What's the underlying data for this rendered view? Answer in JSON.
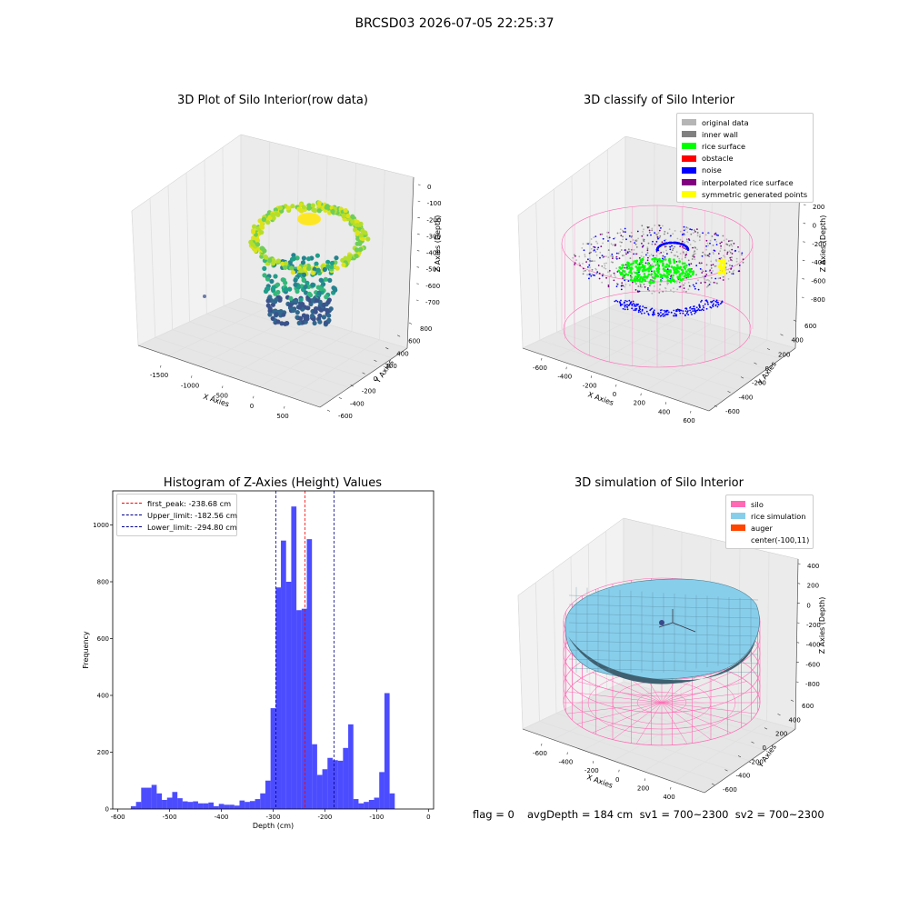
{
  "figure": {
    "suptitle": "BRCSD03 2026-07-05 22:25:37",
    "footer": {
      "flag": "flag = 0",
      "stats": "avgDepth = 184 cm  sv1 = 700~2300  sv2 = 700~2300"
    }
  },
  "colors": {
    "original": "#b5b5b5",
    "inner_wall": "#808080",
    "rice_surface": "#00ff00",
    "obstacle": "#ff0000",
    "noise": "#0000ff",
    "interpolated": "#800080",
    "symmetric": "#ffff00",
    "silo": "#ff69b4",
    "rice_sim": "#87ceeb",
    "auger": "#ff4500",
    "hist_bar": "#0000ff",
    "first_peak": "#ff0000",
    "limits": "#00008b"
  },
  "chart_data": [
    {
      "type": "scatter",
      "subtype": "3d",
      "title": "3D Plot of Silo Interior(row data)",
      "xlabel": "X Axies",
      "ylabel": "Y Axies",
      "zlabel": "Z Axies (Depth)",
      "x_ticks": [
        "-1500",
        "-1000",
        "-500",
        "0",
        "500"
      ],
      "y_ticks": [
        "-600",
        "-400",
        "-200",
        "0",
        "200",
        "400",
        "600",
        "800"
      ],
      "z_ticks": [
        "0",
        "-100",
        "-200",
        "-300",
        "-400",
        "-500",
        "-600",
        "-700"
      ],
      "colormap": "viridis",
      "grid": true
    },
    {
      "type": "scatter",
      "subtype": "3d",
      "title": "3D classify of Silo Interior",
      "xlabel": "X Axies",
      "ylabel": "Y Axies",
      "zlabel": "Z Axies (Depth)",
      "x_ticks": [
        "-600",
        "-400",
        "-200",
        "0",
        "200",
        "400",
        "600"
      ],
      "y_ticks": [
        "-600",
        "-400",
        "-200",
        "0",
        "200",
        "400",
        "600"
      ],
      "z_ticks": [
        "200",
        "0",
        "-200",
        "-400",
        "-600",
        "-800"
      ],
      "z_ticks_note": "top z tick partially hidden by legend",
      "legend": [
        {
          "label": "original data",
          "color": "#b5b5b5"
        },
        {
          "label": "inner wall",
          "color": "#808080"
        },
        {
          "label": "rice surface",
          "color": "#00ff00"
        },
        {
          "label": "obstacle",
          "color": "#ff0000"
        },
        {
          "label": "noise",
          "color": "#0000ff"
        },
        {
          "label": "interpolated rice surface",
          "color": "#800080"
        },
        {
          "label": "symmetric generated points",
          "color": "#ffff00"
        }
      ],
      "legend_position": "top-right",
      "grid": true
    },
    {
      "type": "bar",
      "subtype": "histogram",
      "title": "Histogram of Z-Axies (Height) Values",
      "xlabel": "Depth (cm)",
      "ylabel": "Frequency",
      "xlim": [
        -610,
        10
      ],
      "ylim": [
        0,
        1120
      ],
      "x_ticks": [
        -600,
        -500,
        -400,
        -300,
        -200,
        -100,
        0
      ],
      "y_ticks": [
        0,
        200,
        400,
        600,
        800,
        1000
      ],
      "bin_width": 10,
      "bins": [
        {
          "x0": -575,
          "count": 10
        },
        {
          "x0": -565,
          "count": 25
        },
        {
          "x0": -555,
          "count": 75
        },
        {
          "x0": -545,
          "count": 75
        },
        {
          "x0": -535,
          "count": 85
        },
        {
          "x0": -525,
          "count": 55
        },
        {
          "x0": -515,
          "count": 32
        },
        {
          "x0": -505,
          "count": 40
        },
        {
          "x0": -495,
          "count": 60
        },
        {
          "x0": -485,
          "count": 38
        },
        {
          "x0": -475,
          "count": 27
        },
        {
          "x0": -465,
          "count": 25
        },
        {
          "x0": -455,
          "count": 27
        },
        {
          "x0": -445,
          "count": 20
        },
        {
          "x0": -435,
          "count": 20
        },
        {
          "x0": -425,
          "count": 23
        },
        {
          "x0": -415,
          "count": 10
        },
        {
          "x0": -405,
          "count": 18
        },
        {
          "x0": -395,
          "count": 15
        },
        {
          "x0": -385,
          "count": 15
        },
        {
          "x0": -375,
          "count": 12
        },
        {
          "x0": -365,
          "count": 30
        },
        {
          "x0": -355,
          "count": 25
        },
        {
          "x0": -345,
          "count": 28
        },
        {
          "x0": -335,
          "count": 35
        },
        {
          "x0": -325,
          "count": 55
        },
        {
          "x0": -315,
          "count": 100
        },
        {
          "x0": -305,
          "count": 355
        },
        {
          "x0": -295,
          "count": 780
        },
        {
          "x0": -285,
          "count": 945
        },
        {
          "x0": -275,
          "count": 800
        },
        {
          "x0": -265,
          "count": 1065
        },
        {
          "x0": -255,
          "count": 700
        },
        {
          "x0": -245,
          "count": 705
        },
        {
          "x0": -235,
          "count": 950
        },
        {
          "x0": -225,
          "count": 228
        },
        {
          "x0": -215,
          "count": 120
        },
        {
          "x0": -205,
          "count": 140
        },
        {
          "x0": -195,
          "count": 180
        },
        {
          "x0": -185,
          "count": 172
        },
        {
          "x0": -175,
          "count": 170
        },
        {
          "x0": -165,
          "count": 215
        },
        {
          "x0": -155,
          "count": 298
        },
        {
          "x0": -145,
          "count": 35
        },
        {
          "x0": -135,
          "count": 20
        },
        {
          "x0": -125,
          "count": 25
        },
        {
          "x0": -115,
          "count": 32
        },
        {
          "x0": -105,
          "count": 40
        },
        {
          "x0": -95,
          "count": 130
        },
        {
          "x0": -85,
          "count": 408
        },
        {
          "x0": -75,
          "count": 55
        }
      ],
      "vlines": [
        {
          "label": "first_peak: -238.68 cm",
          "x": -238.68,
          "color": "#ff0000"
        },
        {
          "label": "Upper_limit: -182.56 cm",
          "x": -182.56,
          "color": "#00008b"
        },
        {
          "label": "Lower_limit: -294.80 cm",
          "x": -294.8,
          "color": "#00008b"
        }
      ],
      "legend_position": "top-left"
    },
    {
      "type": "surface",
      "subtype": "3d",
      "title": "3D simulation of Silo Interior",
      "xlabel": "X Axies",
      "ylabel": "Y Axies",
      "zlabel": "Z Axies (Depth)",
      "x_ticks": [
        "-600",
        "-400",
        "-200",
        "0",
        "200",
        "400"
      ],
      "y_ticks": [
        "-600",
        "-400",
        "-200",
        "0",
        "200",
        "400",
        "600"
      ],
      "z_ticks": [
        "400",
        "200",
        "0",
        "-200",
        "-400",
        "-600",
        "-800"
      ],
      "legend": [
        {
          "label": "silo",
          "color": "#ff69b4"
        },
        {
          "label": "rice simulation",
          "color": "#87ceeb"
        },
        {
          "label": "auger",
          "color": "#ff4500"
        },
        {
          "label": "center(-100,11)",
          "color": ""
        }
      ],
      "legend_position": "top-right",
      "grid": true
    }
  ]
}
